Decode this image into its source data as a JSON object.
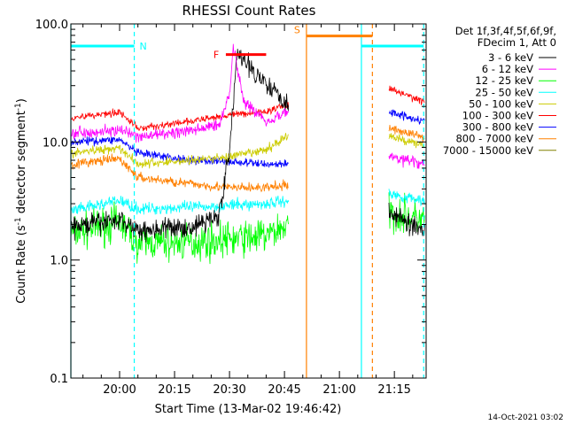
{
  "chart_data": {
    "type": "line",
    "title": "RHESSI Count Rates",
    "xlabel": "Start Time (13-Mar-02 19:46:42)",
    "ylabel": "Count Rate (s",
    "ylabel_sup1": "-1",
    "ylabel_mid": " detector segment",
    "ylabel_sup2": "-1",
    "ylabel_end": ")",
    "yscale": "log",
    "xlim": [
      "19:46:42",
      "21:23:40"
    ],
    "ylim": [
      0.1,
      100.0
    ],
    "x_ticks": [
      "20:00",
      "20:15",
      "20:30",
      "20:45",
      "21:00",
      "21:15"
    ],
    "y_ticks": [
      "0.1",
      "1.0",
      "10.0",
      "100.0"
    ],
    "legend_header": [
      "Det 1f,3f,4f,5f,6f,9f,",
      "FDecim 1, Att 0"
    ],
    "legend_position": "right",
    "data_gap": [
      "20:52",
      "21:13"
    ],
    "series": [
      {
        "name": "3 - 6 keV",
        "color": "#000000",
        "x": [
          "19:47",
          "20:00",
          "20:05",
          "20:20",
          "20:27",
          "20:30",
          "20:32",
          "20:40",
          "20:46",
          "21:14",
          "21:20",
          "21:23"
        ],
        "values": [
          1.9,
          2.2,
          1.8,
          1.9,
          2.4,
          8.0,
          55,
          32,
          21,
          2.5,
          2.0,
          1.8
        ]
      },
      {
        "name": "6 - 12 keV",
        "color": "#ff00ff",
        "x": [
          "19:47",
          "20:00",
          "20:05",
          "20:20",
          "20:27",
          "20:30",
          "20:31",
          "20:34",
          "20:40",
          "20:46",
          "21:14",
          "21:23"
        ],
        "values": [
          12,
          12.5,
          11,
          12.5,
          14,
          25,
          65,
          22,
          15,
          18,
          7.5,
          6.5
        ]
      },
      {
        "name": "12 - 25 keV",
        "color": "#00ff00",
        "x": [
          "19:47",
          "20:00",
          "20:05",
          "20:20",
          "20:30",
          "20:40",
          "20:46",
          "21:14",
          "21:23"
        ],
        "values": [
          1.7,
          2.1,
          1.4,
          1.4,
          1.5,
          1.6,
          2.0,
          2.5,
          2.2
        ]
      },
      {
        "name": "25 - 50 keV",
        "color": "#00ffff",
        "x": [
          "19:47",
          "20:00",
          "20:05",
          "20:20",
          "20:30",
          "20:40",
          "20:46",
          "21:14",
          "21:23"
        ],
        "values": [
          2.6,
          3.2,
          2.7,
          2.8,
          2.9,
          3.0,
          3.2,
          3.6,
          3.2
        ]
      },
      {
        "name": "50 - 100 keV",
        "color": "#cccc00",
        "x": [
          "19:47",
          "20:00",
          "20:05",
          "20:20",
          "20:30",
          "20:40",
          "20:46",
          "21:14",
          "21:23"
        ],
        "values": [
          8.0,
          9.0,
          6.5,
          7.0,
          7.5,
          8.5,
          11.5,
          11.0,
          9.5
        ]
      },
      {
        "name": "100 - 300 keV",
        "color": "#ff0000",
        "x": [
          "19:47",
          "20:00",
          "20:05",
          "20:20",
          "20:30",
          "20:40",
          "20:46",
          "21:14",
          "21:23"
        ],
        "values": [
          16,
          18,
          13,
          15,
          17,
          18,
          21,
          28,
          22
        ]
      },
      {
        "name": "300 - 800 keV",
        "color": "#0000ff",
        "x": [
          "19:47",
          "20:00",
          "20:05",
          "20:20",
          "20:30",
          "20:40",
          "20:46",
          "21:14",
          "21:23"
        ],
        "values": [
          10,
          10.5,
          8.0,
          7.0,
          6.8,
          6.5,
          6.5,
          18,
          15
        ]
      },
      {
        "name": "800 - 7000 keV",
        "color": "#ff8000",
        "x": [
          "19:47",
          "20:00",
          "20:05",
          "20:20",
          "20:30",
          "20:40",
          "20:46",
          "21:14",
          "21:23"
        ],
        "values": [
          6.5,
          7.2,
          5.0,
          4.4,
          4.1,
          4.1,
          4.3,
          13,
          11
        ]
      },
      {
        "name": "7000 - 15000 keV",
        "color": "#808000",
        "x": [],
        "values": []
      }
    ],
    "annotations": [
      {
        "label": "N",
        "kind": "night",
        "color": "#00ffff",
        "x_start": "19:46:42",
        "x_end": "20:04",
        "level": 65
      },
      {
        "label": "",
        "kind": "night",
        "color": "#00ffff",
        "x_start": "21:06",
        "x_end": "21:23",
        "level": 65
      },
      {
        "label": "F",
        "kind": "flare",
        "color": "#ff0000",
        "x_start": "20:29",
        "x_end": "20:40",
        "level": 55
      },
      {
        "label": "S",
        "kind": "saa",
        "color": "#ff8000",
        "x_start": "20:51",
        "x_end": "21:09",
        "level": 79
      }
    ],
    "timestamp": "14-Oct-2021 03:02"
  }
}
